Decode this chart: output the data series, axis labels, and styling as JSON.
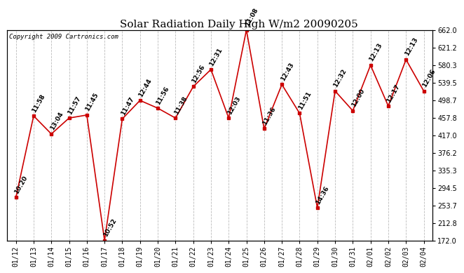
{
  "title": "Solar Radiation Daily High W/m2 20090205",
  "copyright": "Copyright 2009 Cartronics.com",
  "dates": [
    "01/12",
    "01/13",
    "01/14",
    "01/15",
    "01/16",
    "01/17",
    "01/18",
    "01/19",
    "01/20",
    "01/21",
    "01/22",
    "01/23",
    "01/24",
    "01/25",
    "01/26",
    "01/27",
    "01/28",
    "01/29",
    "01/30",
    "01/31",
    "02/01",
    "02/02",
    "02/03",
    "02/04"
  ],
  "values": [
    272,
    462,
    420,
    457,
    464,
    172,
    455,
    498,
    480,
    457,
    530,
    570,
    457,
    662,
    432,
    535,
    468,
    248,
    520,
    474,
    580,
    485,
    593,
    520
  ],
  "time_labels": [
    "10:20",
    "11:58",
    "13:04",
    "11:57",
    "11:45",
    "10:52",
    "11:47",
    "12:44",
    "11:56",
    "11:38",
    "12:56",
    "12:31",
    "12:03",
    "11:08",
    "11:36",
    "12:43",
    "11:51",
    "14:36",
    "12:32",
    "12:00",
    "12:13",
    "12:17",
    "12:13",
    "12:06"
  ],
  "ylim": [
    172.0,
    662.0
  ],
  "yticks": [
    172.0,
    212.8,
    253.7,
    294.5,
    335.3,
    376.2,
    417.0,
    457.8,
    498.7,
    539.5,
    580.3,
    621.2,
    662.0
  ],
  "ytick_labels": [
    "172.0",
    "212.8",
    "253.7",
    "294.5",
    "335.3",
    "376.2",
    "417.0",
    "457.8",
    "498.7",
    "539.5",
    "580.3",
    "621.2",
    "662.0"
  ],
  "line_color": "#cc0000",
  "marker_color": "#cc0000",
  "bg_color": "#ffffff",
  "grid_color": "#bbbbbb",
  "title_fontsize": 11,
  "tick_fontsize": 7,
  "label_fontsize": 6.5
}
